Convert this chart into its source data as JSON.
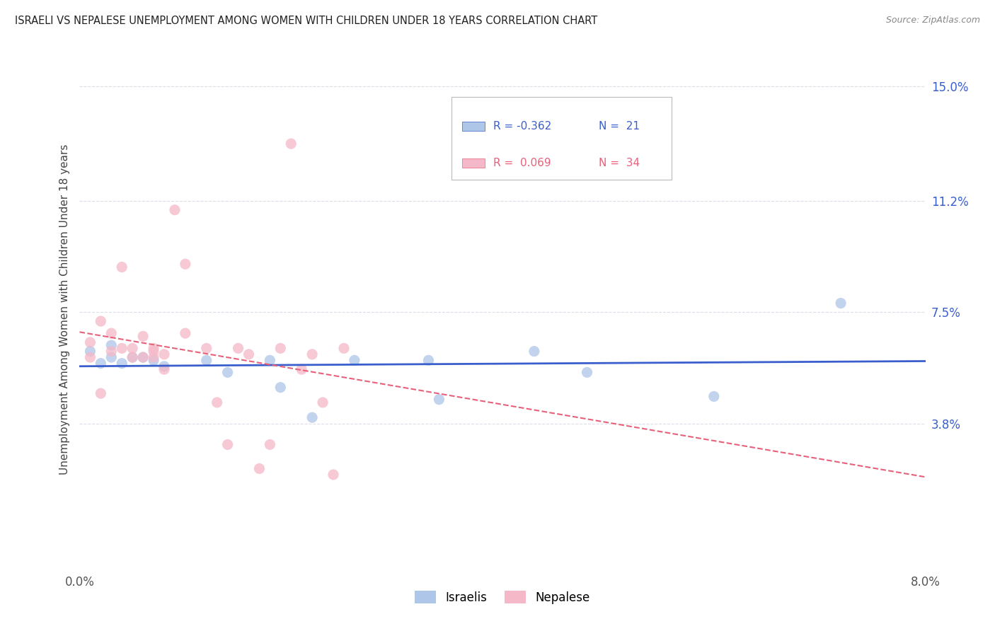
{
  "title": "ISRAELI VS NEPALESE UNEMPLOYMENT AMONG WOMEN WITH CHILDREN UNDER 18 YEARS CORRELATION CHART",
  "source": "Source: ZipAtlas.com",
  "ylabel": "Unemployment Among Women with Children Under 18 years",
  "right_yticks": [
    "15.0%",
    "11.2%",
    "7.5%",
    "3.8%"
  ],
  "right_ytick_vals": [
    0.15,
    0.112,
    0.075,
    0.038
  ],
  "xmin": 0.0,
  "xmax": 0.08,
  "ymin": -0.01,
  "ymax": 0.162,
  "israeli_color": "#aec6e8",
  "nepalese_color": "#f5b8c8",
  "israeli_line_color": "#3a5fcd",
  "nepalese_line_color": "#e8607a",
  "legend_israeli_r": "-0.362",
  "legend_israeli_n": "21",
  "legend_nepalese_r": "0.069",
  "legend_nepalese_n": "34",
  "israelis_x": [
    0.001,
    0.002,
    0.003,
    0.003,
    0.004,
    0.005,
    0.006,
    0.007,
    0.008,
    0.012,
    0.014,
    0.018,
    0.019,
    0.022,
    0.026,
    0.033,
    0.034,
    0.043,
    0.048,
    0.06,
    0.072
  ],
  "israelis_y": [
    0.062,
    0.058,
    0.064,
    0.06,
    0.058,
    0.06,
    0.06,
    0.059,
    0.057,
    0.059,
    0.055,
    0.059,
    0.05,
    0.04,
    0.059,
    0.059,
    0.046,
    0.062,
    0.055,
    0.047,
    0.078
  ],
  "nepalese_x": [
    0.001,
    0.001,
    0.002,
    0.002,
    0.003,
    0.003,
    0.004,
    0.004,
    0.005,
    0.005,
    0.006,
    0.006,
    0.007,
    0.007,
    0.007,
    0.008,
    0.008,
    0.009,
    0.01,
    0.01,
    0.012,
    0.013,
    0.014,
    0.015,
    0.016,
    0.017,
    0.018,
    0.019,
    0.02,
    0.021,
    0.022,
    0.023,
    0.024,
    0.025
  ],
  "nepalese_y": [
    0.06,
    0.065,
    0.048,
    0.072,
    0.062,
    0.068,
    0.063,
    0.09,
    0.063,
    0.06,
    0.067,
    0.06,
    0.063,
    0.06,
    0.062,
    0.061,
    0.056,
    0.109,
    0.091,
    0.068,
    0.063,
    0.045,
    0.031,
    0.063,
    0.061,
    0.023,
    0.031,
    0.063,
    0.131,
    0.056,
    0.061,
    0.045,
    0.021,
    0.063
  ],
  "background_color": "#ffffff",
  "grid_color": "#dcdce8",
  "grid_linestyle": "--"
}
